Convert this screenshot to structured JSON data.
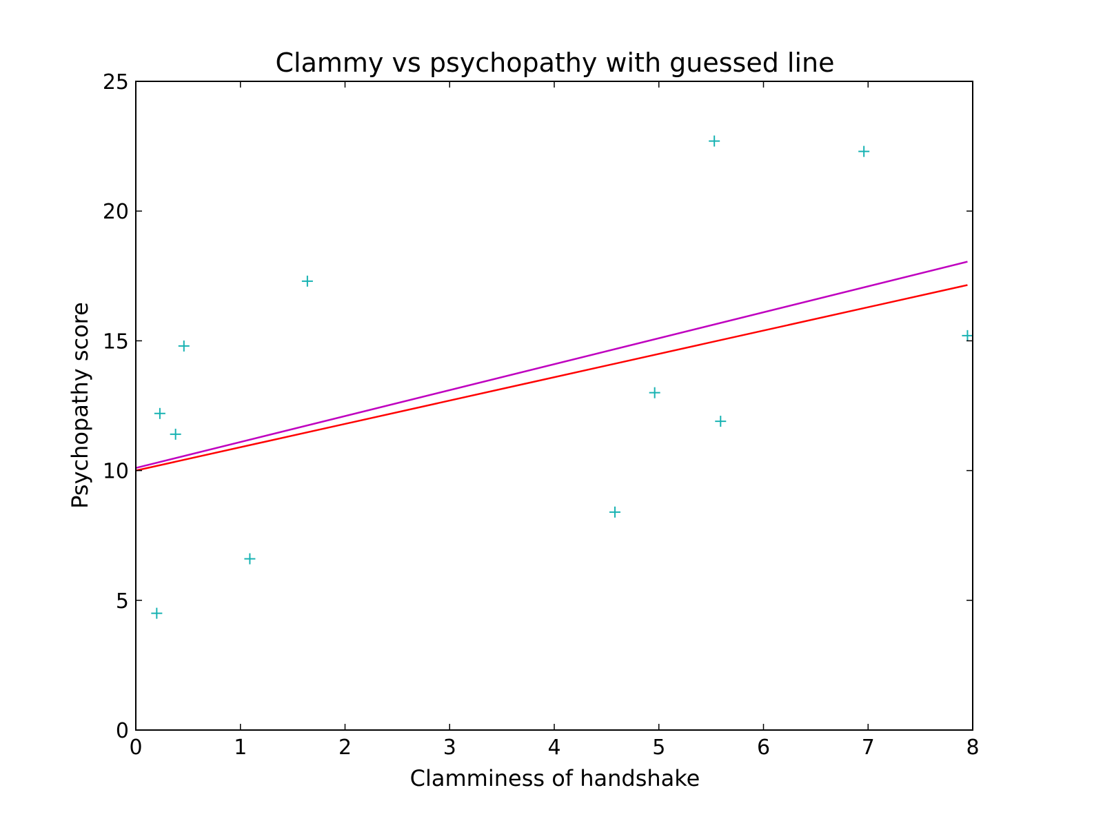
{
  "chart_data": {
    "type": "scatter",
    "title": "Clammy vs psychopathy with guessed line",
    "xlabel": "Clamminess of handshake",
    "ylabel": "Psychopathy score",
    "xlim": [
      0,
      8
    ],
    "ylim": [
      0,
      25
    ],
    "x_ticks": [
      0,
      1,
      2,
      3,
      4,
      5,
      6,
      7,
      8
    ],
    "y_ticks": [
      0,
      5,
      10,
      15,
      20,
      25
    ],
    "grid": false,
    "points": {
      "marker": "plus",
      "color": "#17b2b2",
      "x": [
        0.2,
        0.23,
        0.38,
        0.46,
        1.09,
        1.64,
        4.58,
        4.96,
        5.53,
        5.59,
        6.96,
        7.95
      ],
      "y": [
        4.5,
        12.2,
        11.4,
        14.8,
        6.6,
        17.3,
        8.4,
        13.0,
        22.7,
        11.9,
        22.3,
        15.2
      ]
    },
    "lines": [
      {
        "color": "#bf00bf",
        "x": [
          0,
          7.95
        ],
        "y": [
          10.1,
          18.05
        ]
      },
      {
        "color": "#ff0000",
        "x": [
          0,
          7.95
        ],
        "y": [
          10.0,
          17.15
        ]
      }
    ]
  }
}
